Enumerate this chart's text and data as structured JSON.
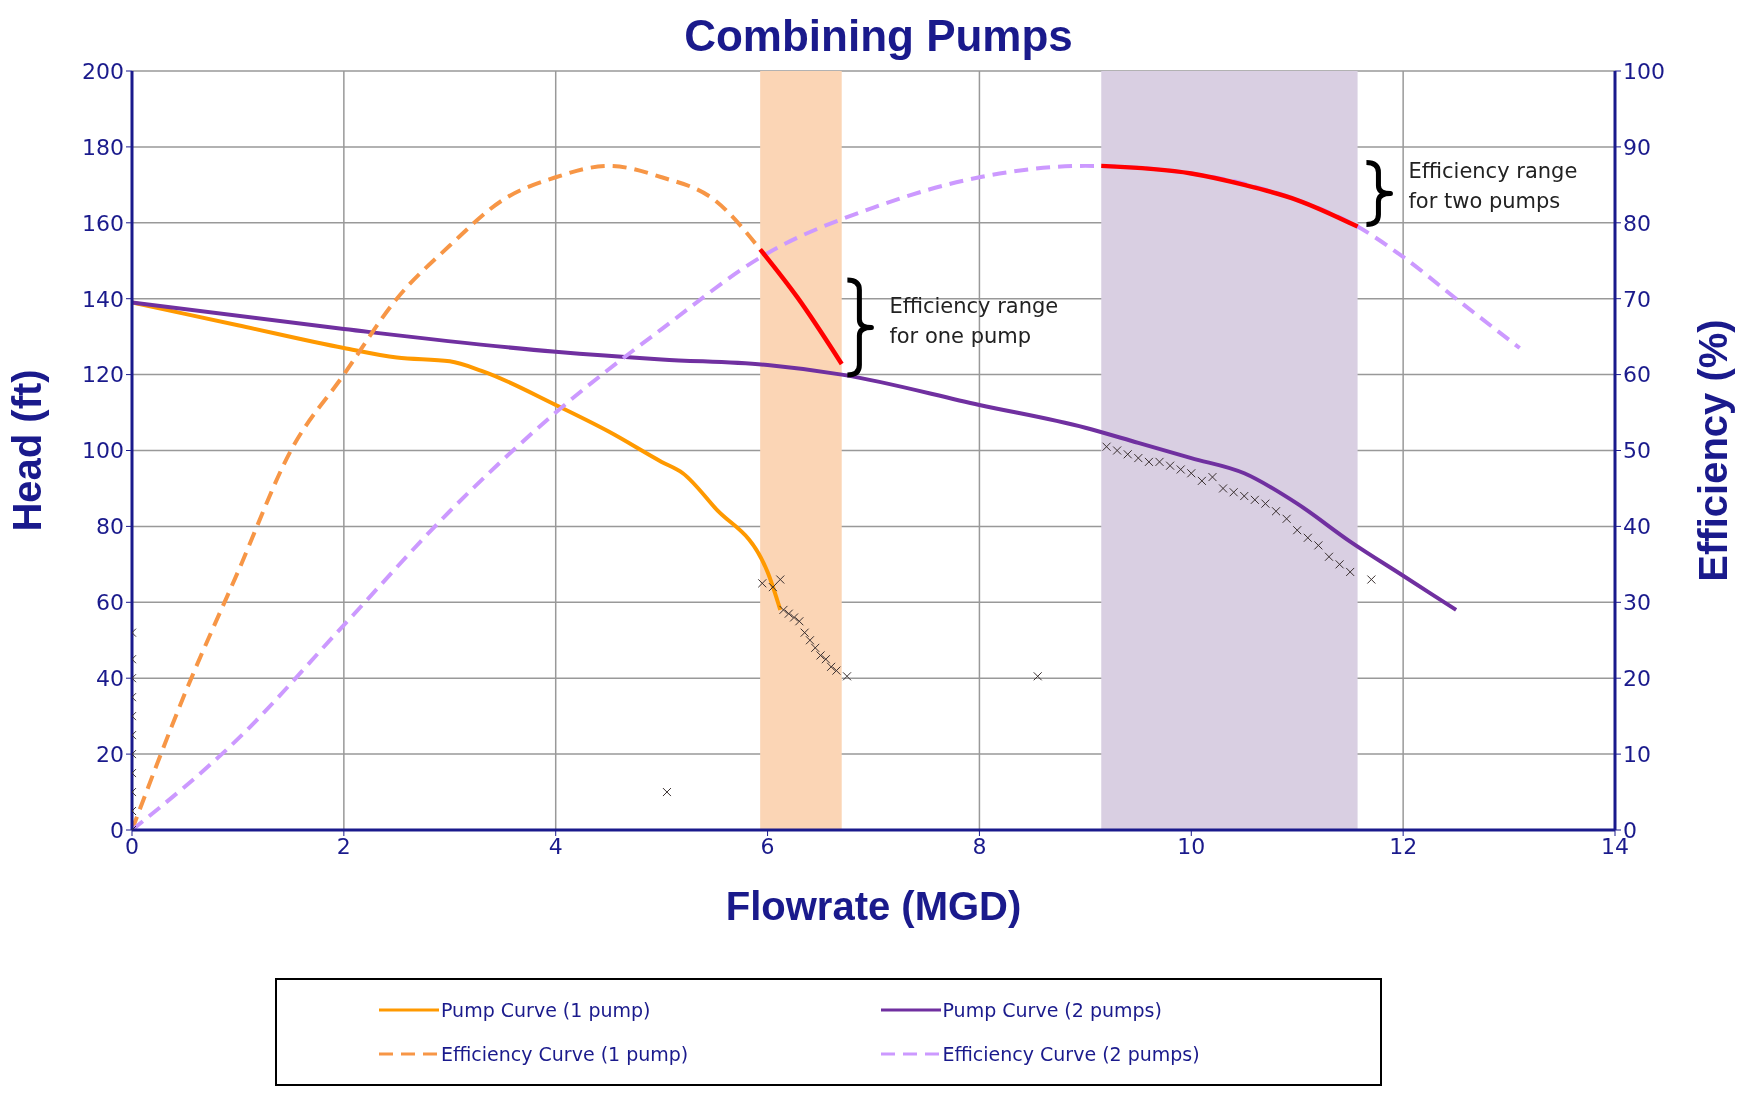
{
  "chart_data": {
    "type": "line",
    "title": "Combining Pumps",
    "xlabel": "Flowrate (MGD)",
    "ylabel": "Head (ft)",
    "y2label": "Efficiency (%)",
    "xlim": [
      0,
      14
    ],
    "xticks": [
      0,
      2,
      4,
      6,
      8,
      10,
      12,
      14
    ],
    "ylim": [
      0,
      200
    ],
    "yticks": [
      0,
      20,
      40,
      60,
      80,
      100,
      120,
      140,
      160,
      180,
      200
    ],
    "y2lim": [
      0,
      100
    ],
    "y2ticks": [
      0,
      10,
      20,
      30,
      40,
      50,
      60,
      70,
      80,
      90,
      100
    ],
    "grid": true,
    "legend": "bottom",
    "marker": "none",
    "series": [
      {
        "name": "Pump Curve (1 pump)",
        "color": "#ff9900",
        "line_style": "solid",
        "x": [
          0,
          1,
          2,
          2.5,
          3,
          3.3,
          4,
          4.5,
          5,
          5.2,
          5.5,
          6,
          6.12
        ],
        "values": [
          139,
          133,
          127,
          124.5,
          123.5,
          121,
          112,
          105,
          97,
          94,
          85,
          68,
          58
        ]
      },
      {
        "name": "Pump Curve (2 pumps)",
        "color": "#7030a0",
        "line_style": "solid",
        "x": [
          0,
          2,
          4,
          5,
          6,
          6.7,
          8,
          9,
          9.5,
          10,
          10.5,
          11,
          11.5,
          12,
          12.5
        ],
        "values": [
          139,
          132,
          126,
          124,
          122.5,
          120,
          112,
          106,
          102,
          98,
          94,
          86,
          76,
          67,
          58
        ]
      },
      {
        "name": "Efficiency Curve (1 pump)",
        "color": "#f79646",
        "line_style": "dashed",
        "axis": "y2",
        "x": [
          0,
          0.5,
          1,
          1.5,
          2,
          2.5,
          3,
          3.5,
          4,
          4.5,
          5,
          5.5,
          5.93
        ],
        "values": [
          0,
          18,
          34,
          50,
          60,
          70,
          77,
          83,
          86,
          87.5,
          86,
          83,
          76.5
        ]
      },
      {
        "name": "Efficiency Curve (2 pumps)",
        "color": "#cc99ff",
        "line_style": "dashed",
        "axis": "y2",
        "x": [
          0,
          1,
          2,
          3,
          4,
          5,
          6,
          7,
          8,
          9,
          10,
          11,
          11.57,
          12,
          12.5,
          13.1
        ],
        "values": [
          0,
          12,
          27,
          42,
          55,
          66,
          76,
          82,
          86,
          87.5,
          86.5,
          83,
          79.5,
          75.5,
          70,
          63.5
        ]
      },
      {
        "color": "#ff0000",
        "line_style": "solid",
        "axis": "y2",
        "x": [
          5.93,
          6.28,
          6.7
        ],
        "values": [
          76.5,
          70.2,
          61.4
        ]
      },
      {
        "color": "#ff0000",
        "line_style": "solid",
        "axis": "y2",
        "x": [
          9.15,
          10,
          10.5,
          11,
          11.57
        ],
        "values": [
          87.5,
          86.5,
          85,
          83,
          79.5
        ]
      },
      {
        "type": "scatter",
        "color": "#3a3030",
        "marker": "cross",
        "x": [
          0,
          0,
          0,
          0,
          0,
          0,
          0,
          0,
          0,
          0,
          0,
          5.05,
          5.95,
          6.05,
          6.12,
          6.15,
          6.2,
          6.25,
          6.3,
          6.35,
          6.4,
          6.45,
          6.5,
          6.55,
          6.6,
          6.65,
          6.75,
          8.55,
          9.2,
          9.3,
          9.4,
          9.5,
          9.6,
          9.7,
          9.8,
          9.9,
          10,
          10.1,
          10.2,
          10.3,
          10.4,
          10.5,
          10.6,
          10.7,
          10.8,
          10.9,
          11,
          11.1,
          11.2,
          11.3,
          11.4,
          11.5,
          11.7
        ],
        "values": [
          0,
          5,
          10,
          15,
          20,
          25,
          30,
          35,
          40,
          45,
          52,
          10,
          65,
          64,
          66,
          58,
          57,
          56,
          55,
          52,
          50,
          48,
          46,
          45,
          43,
          42,
          40.5,
          40.5,
          101,
          100,
          99,
          98,
          97,
          97,
          96,
          95,
          94,
          92,
          93,
          90,
          89,
          88,
          87,
          86,
          84,
          82,
          79,
          77,
          75,
          72,
          70,
          68,
          66
        ]
      }
    ],
    "bands": [
      {
        "axis": "x",
        "from": 5.93,
        "to": 6.7,
        "color": "#fbd5b5"
      },
      {
        "axis": "x",
        "from": 9.15,
        "to": 11.57,
        "color": "#d9cfe2"
      }
    ],
    "annotations": [
      "Efficiency range for one pump",
      "Efficiency range for two pumps"
    ]
  }
}
